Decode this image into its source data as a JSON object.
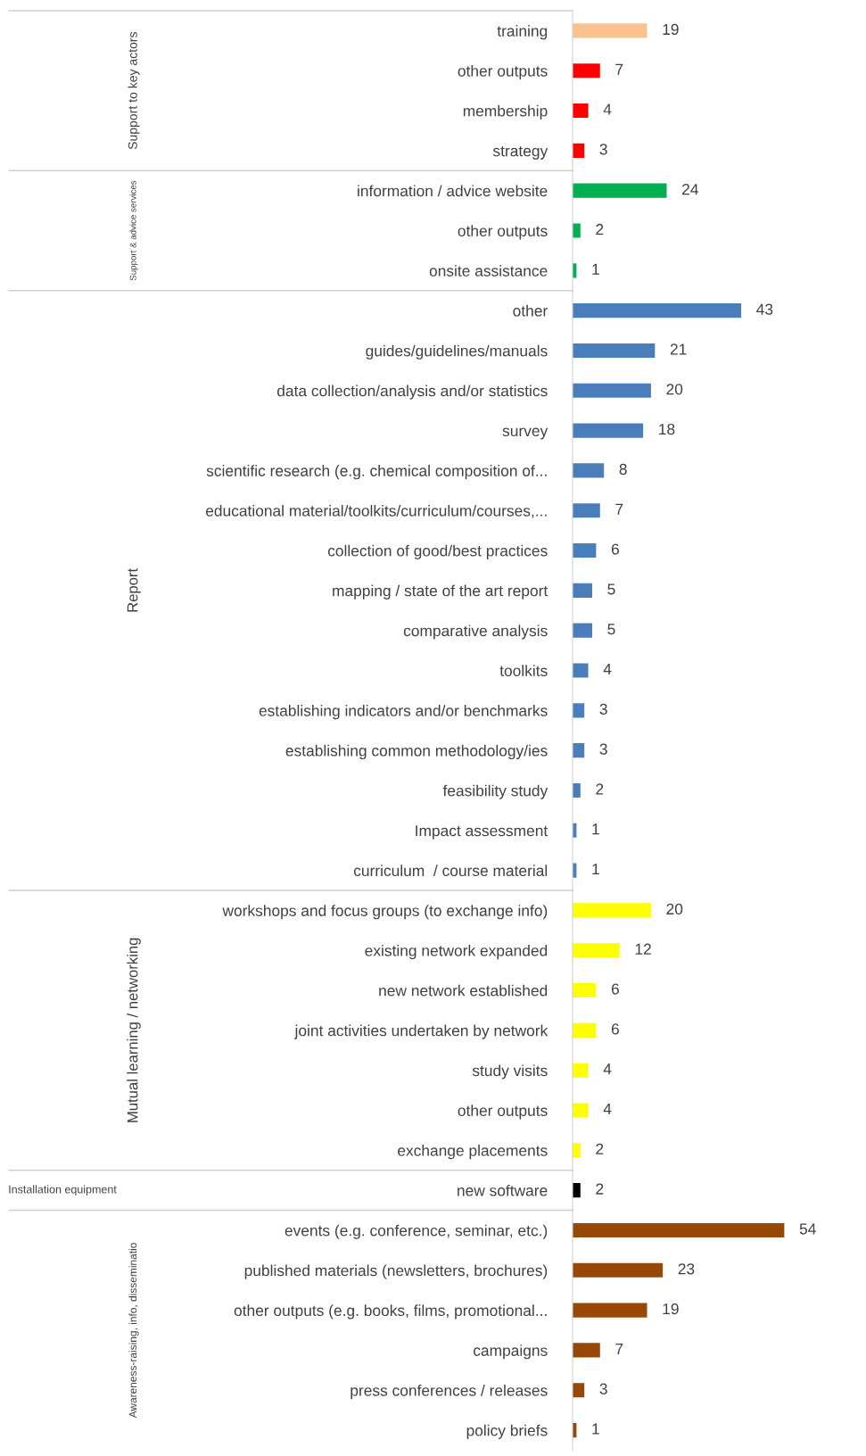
{
  "chart_data": [
    {
      "type": "bar",
      "orientation": "horizontal",
      "ylabel": "Support to key actors",
      "tick_labels": "y",
      "data_labels": true,
      "categories": [
        "training",
        "other outputs",
        "membership",
        "strategy"
      ],
      "values": [
        19,
        7,
        4,
        3
      ],
      "colors": [
        "#f9c28f",
        "#ff0000",
        "#ff0000",
        "#ff0000"
      ]
    },
    {
      "type": "bar",
      "orientation": "horizontal",
      "ylabel": "Support & advice services",
      "tick_labels": "y",
      "data_labels": true,
      "categories": [
        "information / advice website",
        "other outputs",
        "onsite assistance"
      ],
      "values": [
        24,
        2,
        1
      ],
      "color": "#00b050"
    },
    {
      "type": "bar",
      "orientation": "horizontal",
      "ylabel": "Report",
      "tick_labels": "y",
      "data_labels": true,
      "categories": [
        "other",
        "guides/guidelines/manuals",
        "data collection/analysis and/or statistics",
        "survey",
        "scientific research (e.g. chemical composition of...",
        "educational material/toolkits/curriculum/courses,...",
        "collection of good/best practices",
        "mapping / state of the art report",
        "comparative analysis",
        "toolkits",
        "establishing indicators and/or benchmarks",
        "establishing common methodology/ies",
        "feasibility study",
        "Impact assessment",
        "curriculum  / course material"
      ],
      "values": [
        43,
        21,
        20,
        18,
        8,
        7,
        6,
        5,
        5,
        4,
        3,
        3,
        2,
        1,
        1
      ],
      "color": "#4a7ebb"
    },
    {
      "type": "bar",
      "orientation": "horizontal",
      "ylabel": "Mutual learning / networking",
      "tick_labels": "y",
      "data_labels": true,
      "categories": [
        "workshops and focus groups (to exchange info)",
        "existing network expanded",
        "new network established",
        "joint activities undertaken by network",
        "study visits",
        "other outputs",
        "exchange placements"
      ],
      "values": [
        20,
        12,
        6,
        6,
        4,
        4,
        2
      ],
      "color": "#ffff00"
    },
    {
      "type": "bar",
      "orientation": "horizontal",
      "ylabel": "Installation equipment",
      "tick_labels": "y",
      "data_labels": true,
      "categories": [
        "new software"
      ],
      "values": [
        2
      ],
      "color": "#000000"
    },
    {
      "type": "bar",
      "orientation": "horizontal",
      "ylabel": "Awareness-raising, info, disseminatio",
      "tick_labels": "y",
      "data_labels": true,
      "categories": [
        "events (e.g. conference, seminar, etc.)",
        "published materials (newsletters, brochures)",
        "other outputs (e.g. books, films, promotional...",
        "campaigns",
        "press conferences / releases",
        "policy briefs"
      ],
      "values": [
        54,
        23,
        19,
        7,
        3,
        1
      ],
      "color": "#974706"
    }
  ]
}
